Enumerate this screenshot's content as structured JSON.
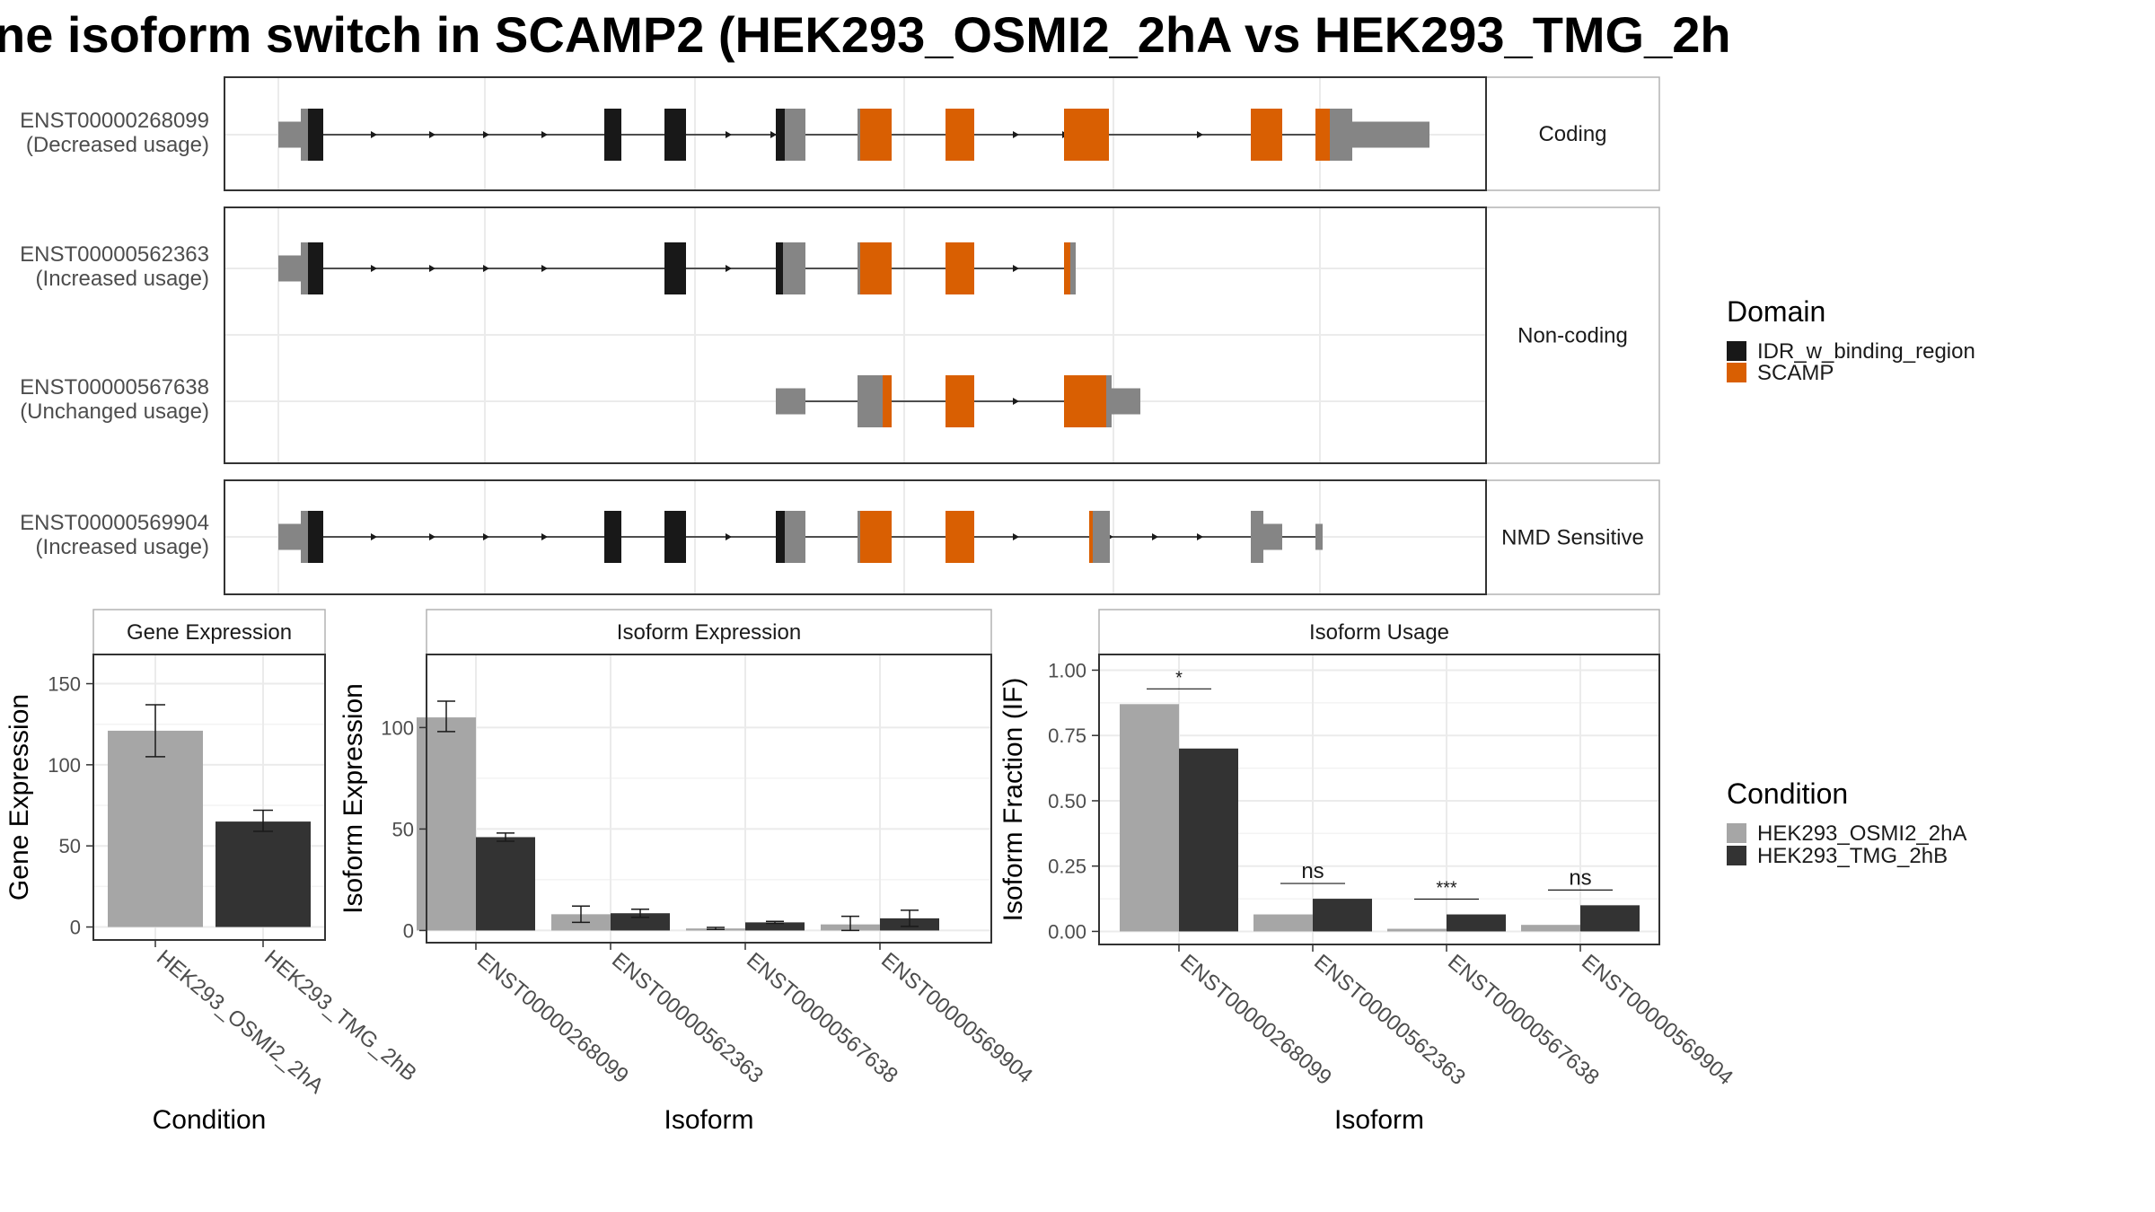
{
  "title": "ne isoform switch in SCAMP2 (HEK293_OSMI2_2hA vs HEK293_TMG_2h",
  "colors": {
    "idr": "#181818",
    "scamp": "#D95F02",
    "utr": "#858585",
    "cond1": "#A6A6A6",
    "cond2": "#333333",
    "grid": "#EBEBEB",
    "panel_border": "#333333",
    "strip_border": "#B3B3B3"
  },
  "structure": {
    "facets": [
      "Coding",
      "Non-coding",
      "NMD Sensitive"
    ],
    "isoforms": [
      {
        "id": "ENST00000268099",
        "status": "(Decreased usage)",
        "facet": "Coding"
      },
      {
        "id": "ENST00000562363",
        "status": "(Increased usage)",
        "facet": "Non-coding"
      },
      {
        "id": "ENST00000567638",
        "status": "(Unchanged usage)",
        "facet": "Non-coding"
      },
      {
        "id": "ENST00000569904",
        "status": "(Increased usage)",
        "facet": "NMD Sensitive"
      }
    ]
  },
  "legends": {
    "domain": {
      "title": "Domain",
      "items": [
        "IDR_w_binding_region",
        "SCAMP"
      ]
    },
    "condition": {
      "title": "Condition",
      "items": [
        "HEK293_OSMI2_2hA",
        "HEK293_TMG_2hB"
      ]
    }
  },
  "chart_data": [
    {
      "type": "bar",
      "title": "Gene Expression",
      "xlabel": "Condition",
      "ylabel": "Gene Expression",
      "categories": [
        "HEK293_OSMI2_2hA",
        "HEK293_TMG_2hB"
      ],
      "values": [
        121,
        65
      ],
      "errors": [
        [
          105,
          137
        ],
        [
          59,
          72
        ]
      ],
      "ylim": [
        -8,
        168
      ],
      "yticks": [
        0,
        50,
        100,
        150
      ]
    },
    {
      "type": "bar",
      "title": "Isoform Expression",
      "xlabel": "Isoform",
      "ylabel": "Isoform Expression",
      "categories": [
        "ENST00000268099",
        "ENST00000562363",
        "ENST00000567638",
        "ENST00000569904"
      ],
      "series": [
        {
          "name": "HEK293_OSMI2_2hA",
          "values": [
            105,
            8,
            1,
            3
          ],
          "errors": [
            [
              98,
              113
            ],
            [
              4,
              12
            ],
            [
              0.5,
              1.5
            ],
            [
              0,
              7
            ]
          ]
        },
        {
          "name": "HEK293_TMG_2hB",
          "values": [
            46,
            8.5,
            4,
            6
          ],
          "errors": [
            [
              44,
              48
            ],
            [
              6.5,
              10.5
            ],
            [
              3.5,
              4.5
            ],
            [
              2,
              10
            ]
          ]
        }
      ],
      "ylim": [
        -6,
        136
      ],
      "yticks": [
        0,
        50,
        100
      ]
    },
    {
      "type": "bar",
      "title": "Isoform Usage",
      "xlabel": "Isoform",
      "ylabel": "Isoform Fraction (IF)",
      "categories": [
        "ENST00000268099",
        "ENST00000562363",
        "ENST00000567638",
        "ENST00000569904"
      ],
      "series": [
        {
          "name": "HEK293_OSMI2_2hA",
          "values": [
            0.87,
            0.065,
            0.01,
            0.025
          ]
        },
        {
          "name": "HEK293_TMG_2hB",
          "values": [
            0.7,
            0.125,
            0.065,
            0.1
          ]
        }
      ],
      "significance": [
        "*",
        "ns",
        "***",
        "ns"
      ],
      "ylim": [
        -0.05,
        1.06
      ],
      "yticks": [
        "0.00",
        "0.25",
        "0.50",
        "0.75",
        "1.00"
      ]
    }
  ]
}
